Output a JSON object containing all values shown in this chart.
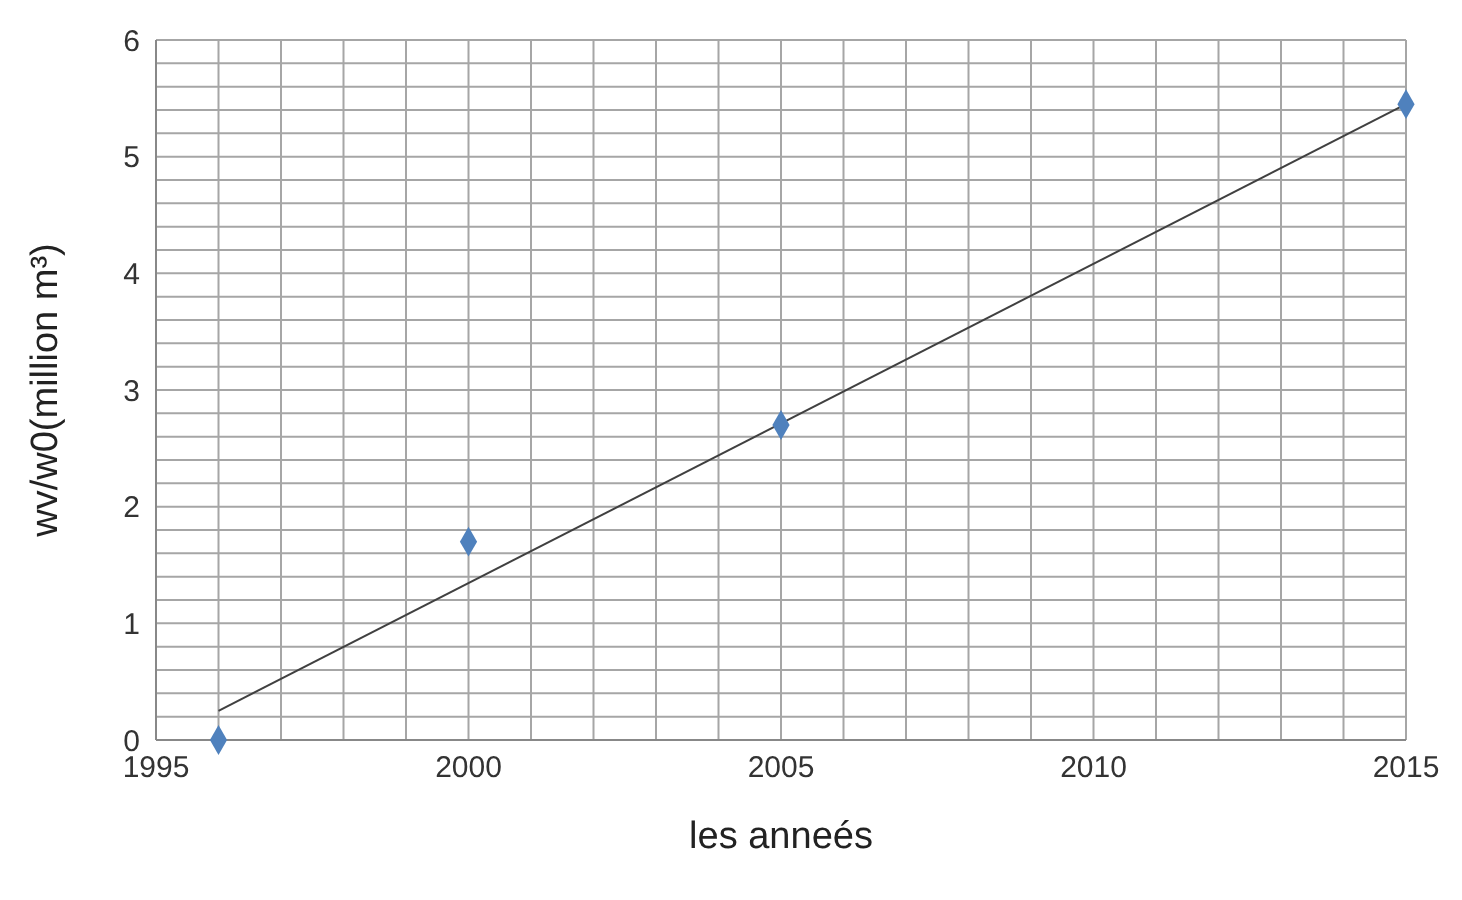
{
  "chart_data": {
    "type": "scatter",
    "xlabel": "les anneés",
    "ylabel": "wv/w0(million m³)",
    "xlim": [
      1995,
      2015
    ],
    "ylim": [
      0,
      6
    ],
    "xticks": [
      1995,
      {
        "value": 1996,
        "label": null
      },
      {
        "value": 1997,
        "label": null
      },
      {
        "value": 1998,
        "label": null
      },
      {
        "value": 1999,
        "label": null
      },
      2000,
      {
        "value": 2001,
        "label": null
      },
      {
        "value": 2002,
        "label": null
      },
      {
        "value": 2003,
        "label": null
      },
      {
        "value": 2004,
        "label": null
      },
      2005,
      {
        "value": 2006,
        "label": null
      },
      {
        "value": 2007,
        "label": null
      },
      {
        "value": 2008,
        "label": null
      },
      {
        "value": 2009,
        "label": null
      },
      2010,
      {
        "value": 2011,
        "label": null
      },
      {
        "value": 2012,
        "label": null
      },
      {
        "value": 2013,
        "label": null
      },
      {
        "value": 2014,
        "label": null
      },
      2015
    ],
    "yticks": [
      0,
      {
        "value": 0.2,
        "label": null
      },
      {
        "value": 0.4,
        "label": null
      },
      {
        "value": 0.6,
        "label": null
      },
      {
        "value": 0.8,
        "label": null
      },
      1,
      {
        "value": 1.2,
        "label": null
      },
      {
        "value": 1.4,
        "label": null
      },
      {
        "value": 1.6,
        "label": null
      },
      {
        "value": 1.8,
        "label": null
      },
      2,
      {
        "value": 2.2,
        "label": null
      },
      {
        "value": 2.4,
        "label": null
      },
      {
        "value": 2.6,
        "label": null
      },
      {
        "value": 2.8,
        "label": null
      },
      3,
      {
        "value": 3.2,
        "label": null
      },
      {
        "value": 3.4,
        "label": null
      },
      {
        "value": 3.6,
        "label": null
      },
      {
        "value": 3.8,
        "label": null
      },
      4,
      {
        "value": 4.2,
        "label": null
      },
      {
        "value": 4.4,
        "label": null
      },
      {
        "value": 4.6,
        "label": null
      },
      {
        "value": 4.8,
        "label": null
      },
      5,
      {
        "value": 5.2,
        "label": null
      },
      {
        "value": 5.4,
        "label": null
      },
      {
        "value": 5.6,
        "label": null
      },
      {
        "value": 5.8,
        "label": null
      },
      6
    ],
    "grid": true,
    "series": [
      {
        "color": "#4f81bd",
        "marker": "diamond",
        "x": [
          1996,
          2000,
          2005,
          2015
        ],
        "values": [
          0,
          1.7,
          2.7,
          5.45
        ]
      },
      {
        "type": "line",
        "color": "#404040",
        "marker": "none",
        "x": [
          1996,
          2015
        ],
        "values": [
          0.25,
          5.45
        ]
      }
    ]
  }
}
